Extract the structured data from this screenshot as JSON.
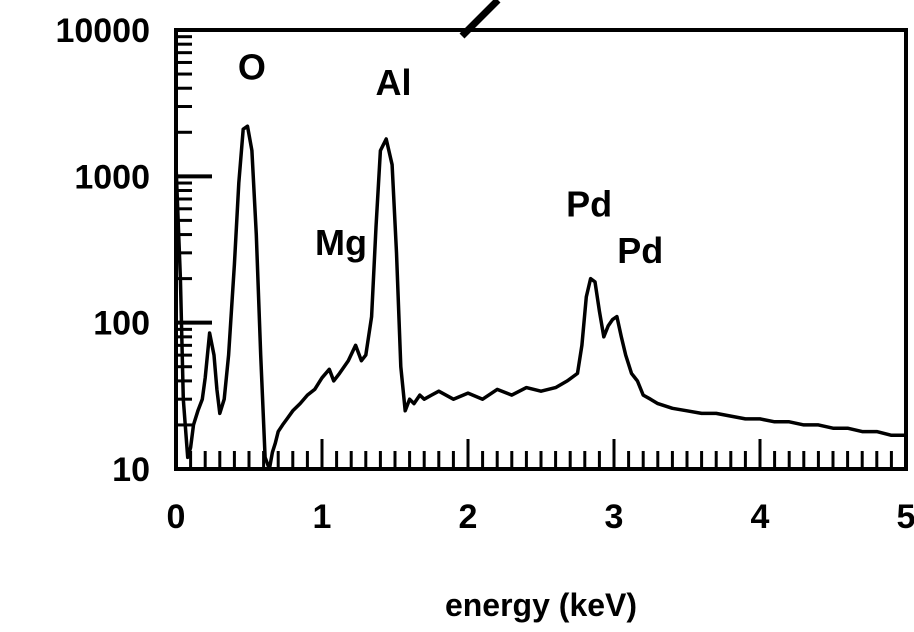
{
  "chart_data": {
    "type": "line",
    "xlabel": "energy (keV)",
    "ylabel": "",
    "title": "",
    "xlim": [
      0,
      5
    ],
    "ylim": [
      10,
      10000
    ],
    "y_scale": "log",
    "x_ticks": [
      "0",
      "1",
      "2",
      "3",
      "4",
      "5"
    ],
    "y_ticks": [
      "10",
      "100",
      "1000",
      "10000"
    ],
    "grid": false,
    "line_color": "#000000",
    "series": [
      {
        "x": [
          0.0,
          0.03,
          0.05,
          0.08,
          0.1,
          0.12,
          0.15,
          0.18,
          0.2,
          0.23,
          0.26,
          0.28,
          0.3,
          0.33,
          0.36,
          0.4,
          0.43,
          0.46,
          0.49,
          0.52,
          0.55,
          0.58,
          0.61,
          0.64,
          0.66,
          0.68,
          0.7,
          0.73,
          0.76,
          0.8,
          0.85,
          0.9,
          0.95,
          1.0,
          1.05,
          1.08,
          1.12,
          1.18,
          1.23,
          1.27,
          1.3,
          1.34,
          1.37,
          1.4,
          1.44,
          1.48,
          1.51,
          1.54,
          1.57,
          1.6,
          1.63,
          1.67,
          1.7,
          1.75,
          1.8,
          1.9,
          2.0,
          2.1,
          2.2,
          2.3,
          2.4,
          2.5,
          2.6,
          2.68,
          2.75,
          2.78,
          2.81,
          2.84,
          2.87,
          2.9,
          2.93,
          2.96,
          2.99,
          3.02,
          3.05,
          3.08,
          3.12,
          3.16,
          3.2,
          3.25,
          3.3,
          3.4,
          3.5,
          3.6,
          3.7,
          3.8,
          3.9,
          4.0,
          4.1,
          4.2,
          4.3,
          4.4,
          4.5,
          4.6,
          4.7,
          4.8,
          4.9,
          5.0
        ],
        "y": [
          1200,
          200,
          30,
          12,
          14,
          20,
          25,
          30,
          42,
          85,
          60,
          35,
          24,
          30,
          60,
          250,
          900,
          2100,
          2200,
          1500,
          400,
          60,
          12,
          10,
          13,
          15,
          18,
          20,
          22,
          25,
          28,
          32,
          35,
          42,
          48,
          40,
          45,
          55,
          70,
          55,
          60,
          110,
          450,
          1500,
          1800,
          1200,
          300,
          50,
          25,
          30,
          28,
          32,
          30,
          32,
          34,
          30,
          33,
          30,
          35,
          32,
          36,
          34,
          36,
          40,
          45,
          70,
          150,
          200,
          190,
          120,
          80,
          95,
          105,
          110,
          80,
          60,
          45,
          40,
          32,
          30,
          28,
          26,
          25,
          24,
          24,
          23,
          22,
          22,
          21,
          21,
          20,
          20,
          19,
          19,
          18,
          18,
          17,
          17
        ]
      }
    ],
    "annotations": [
      {
        "text": "O",
        "x": 0.52,
        "y": 4600
      },
      {
        "text": "Al",
        "x": 1.49,
        "y": 3600
      },
      {
        "text": "Mg",
        "x": 1.13,
        "y": 290
      },
      {
        "text": "Pd",
        "x": 2.83,
        "y": 530
      },
      {
        "text": "Pd",
        "x": 3.18,
        "y": 255
      }
    ]
  }
}
